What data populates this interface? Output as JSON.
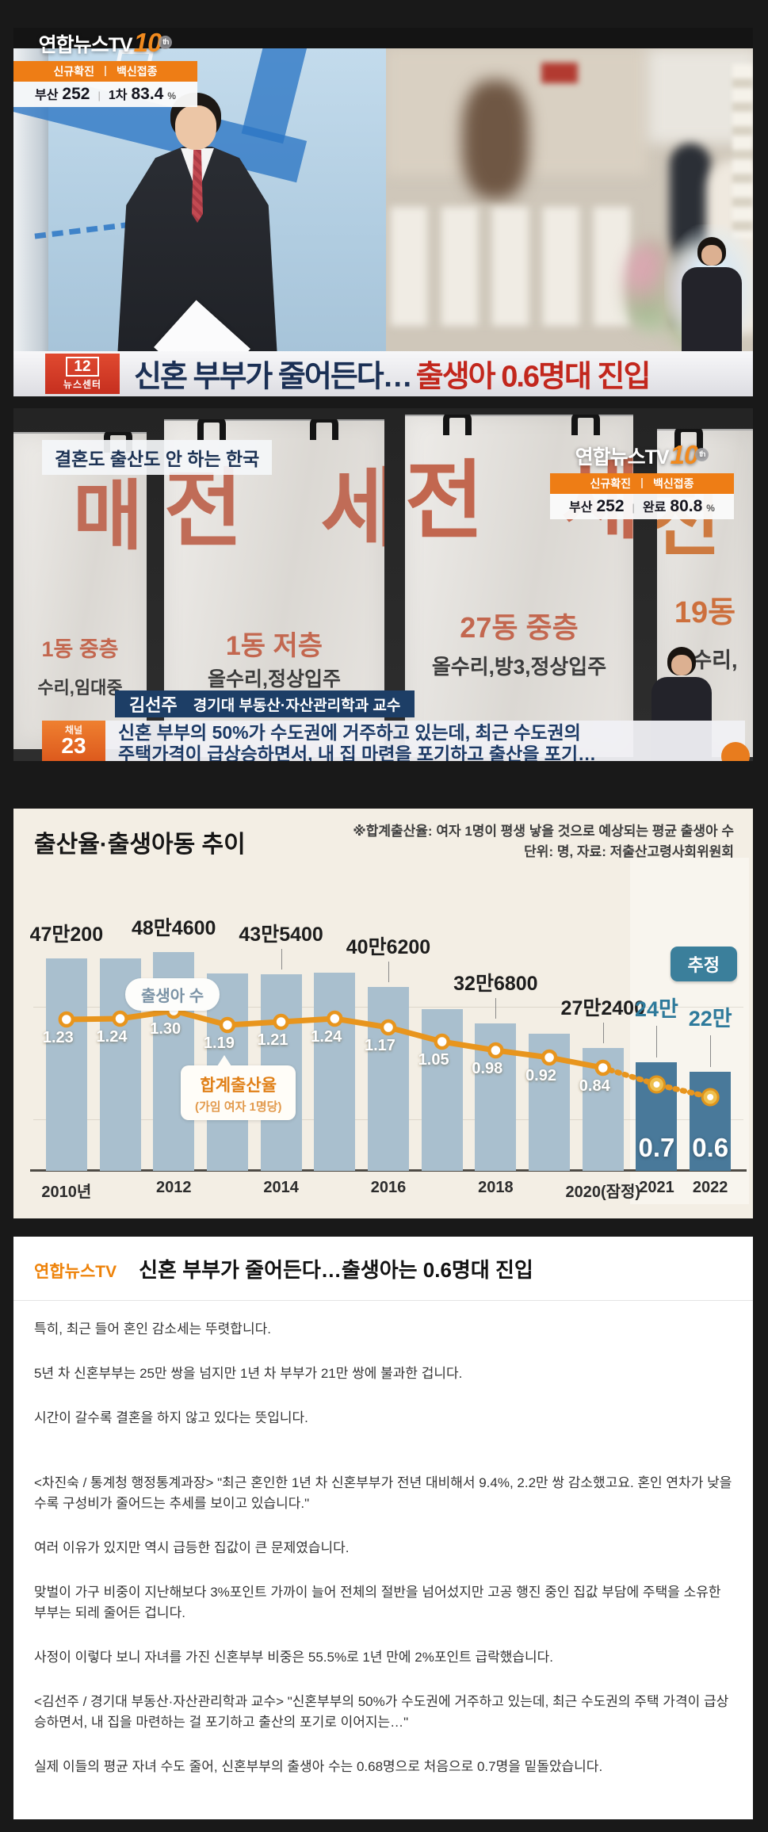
{
  "broadcast1": {
    "logo": {
      "name": "연합뉴스TV",
      "num": "10",
      "suffix": "th"
    },
    "ticker": {
      "head_left": "신규확진",
      "head_sep": "|",
      "head_right": "백신접종",
      "loc": "부산",
      "loc_value": "252",
      "sep": "|",
      "dose": "1차",
      "dose_value": "83.4",
      "unit": "%"
    },
    "badge": {
      "number": "12",
      "label": "뉴스센터"
    },
    "headline": {
      "dark": "신혼 부부가 줄어든다…",
      "red": "출생아 0.6명대 진입"
    }
  },
  "broadcast2": {
    "caption": "결혼도 출산도 안 하는 한국",
    "logo": {
      "name": "연합뉴스TV",
      "num": "10",
      "suffix": "th"
    },
    "ticker": {
      "head_left": "신규확진",
      "head_sep": "|",
      "head_right": "백신접종",
      "loc": "부산",
      "loc_value": "252",
      "sep": "|",
      "dose": "완료",
      "dose_value": "80.8",
      "unit": "%"
    },
    "posters": [
      {
        "big": "매 매",
        "mid": "1동 중층",
        "bottom": "수리,임대중"
      },
      {
        "big": "전 세",
        "mid": "1동 저층",
        "bottom": "올수리,정상입주"
      },
      {
        "big": "전 세",
        "mid": "27동 중층",
        "bottom": "올수리,방3,정상입주"
      },
      {
        "big": "전 세",
        "mid": "19동",
        "bottom": "올수리,"
      }
    ],
    "speaker": {
      "name": "김선주",
      "title": "경기대 부동산·자산관리학과 교수"
    },
    "channel": {
      "label": "채널",
      "number": "23"
    },
    "caption_bar": {
      "line1": "신혼 부부의 50%가 수도권에 거주하고 있는데, 최근 수도권의",
      "line2": "주택가격이 급상승하면서, 내 집 마련을 포기하고 출산을 포기…"
    }
  },
  "chart_data": {
    "type": "bar+line",
    "title": "출산율·출생아동 추이",
    "note1": "※합계출산율: 여자 1명이 평생 낳을 것으로 예상되는 평균 출생아 수",
    "note2": "단위: 명, 자료: 저출산고령사회위원회",
    "estimate_badge": "추정",
    "births_series_label": "출생아 수",
    "rate_series_label": "합계출산율",
    "rate_series_sublabel": "(가임 여자 1명당)",
    "births_unit": "만",
    "legend_position": "inside",
    "grid": true,
    "bars": [
      {
        "year": "2010",
        "births": 47.02,
        "label": "47만200",
        "rate": 1.23,
        "x_label": "2010년",
        "leader": false,
        "est": false
      },
      {
        "year": "2011",
        "births": 47.1,
        "label": "",
        "rate": 1.24,
        "x_label": "",
        "leader": false,
        "est": false
      },
      {
        "year": "2012",
        "births": 48.46,
        "label": "48만4600",
        "rate": 1.3,
        "x_label": "2012",
        "leader": false,
        "est": false
      },
      {
        "year": "2013",
        "births": 43.65,
        "label": "",
        "rate": 1.19,
        "x_label": "",
        "leader": false,
        "est": false
      },
      {
        "year": "2014",
        "births": 43.54,
        "label": "43만5400",
        "rate": 1.21,
        "x_label": "2014",
        "leader": true,
        "est": false
      },
      {
        "year": "2015",
        "births": 43.84,
        "label": "",
        "rate": 1.24,
        "x_label": "",
        "leader": false,
        "est": false
      },
      {
        "year": "2016",
        "births": 40.62,
        "label": "40만6200",
        "rate": 1.17,
        "x_label": "2016",
        "leader": true,
        "est": false
      },
      {
        "year": "2017",
        "births": 35.77,
        "label": "",
        "rate": 1.05,
        "x_label": "",
        "leader": false,
        "est": false
      },
      {
        "year": "2018",
        "births": 32.68,
        "label": "32만6800",
        "rate": 0.98,
        "x_label": "2018",
        "leader": true,
        "est": false
      },
      {
        "year": "2019",
        "births": 30.28,
        "label": "",
        "rate": 0.92,
        "x_label": "",
        "leader": false,
        "est": false
      },
      {
        "year": "2020",
        "births": 27.24,
        "label": "27만2400",
        "rate": 0.84,
        "x_label": "2020(잠정)",
        "leader": true,
        "est": false
      },
      {
        "year": "2021",
        "births": 24,
        "label": "24만",
        "rate": 0.7,
        "x_label": "2021",
        "leader": true,
        "est": true
      },
      {
        "year": "2022",
        "births": 22,
        "label": "22만",
        "rate": 0.6,
        "x_label": "2022",
        "leader": true,
        "est": true
      }
    ],
    "colors": {
      "bar": "#a9bfce",
      "bar_estimate": "#49799a",
      "line": "#e8951d",
      "background": "#f3eee4",
      "estimate_label": "#2e7a9b"
    }
  },
  "article": {
    "logo": "연합뉴스TV",
    "title": "신혼 부부가 줄어든다…출생아는 0.6명대 진입",
    "paragraphs": [
      "특히, 최근 들어 혼인 감소세는 뚜렷합니다.",
      "5년 차 신혼부부는 25만 쌍을 넘지만 1년 차 부부가 21만 쌍에 불과한 겁니다.",
      "시간이 갈수록 결혼을 하지 않고 있다는 뜻입니다.",
      "<차진숙 / 통계청 행정통계과장> \"최근 혼인한 1년 차 신혼부부가 전년 대비해서 9.4%, 2.2만 쌍 감소했고요. 혼인 연차가 낮을수록 구성비가 줄어드는 추세를 보이고 있습니다.\"",
      "여러 이유가 있지만 역시 급등한 집값이 큰 문제였습니다.",
      "맞벌이 가구 비중이 지난해보다 3%포인트 가까이 늘어 전체의 절반을 넘어섰지만 고공 행진 중인 집값 부담에 주택을 소유한 부부는 되레 줄어든 겁니다.",
      "사정이 이렇다 보니 자녀를 가진 신혼부부 비중은 55.5%로 1년 만에 2%포인트 급락했습니다.",
      "<김선주 / 경기대 부동산·자산관리학과 교수> \"신혼부부의 50%가 수도권에 거주하고 있는데, 최근 수도권의 주택 가격이 급상승하면서, 내 집을 마련하는 걸 포기하고 출산의 포기로 이어지는…\"",
      "실제 이들의 평균 자녀 수도 줄어, 신혼부부의 출생아 수는 0.68명으로 처음으로 0.7명을 밑돌았습니다."
    ]
  }
}
